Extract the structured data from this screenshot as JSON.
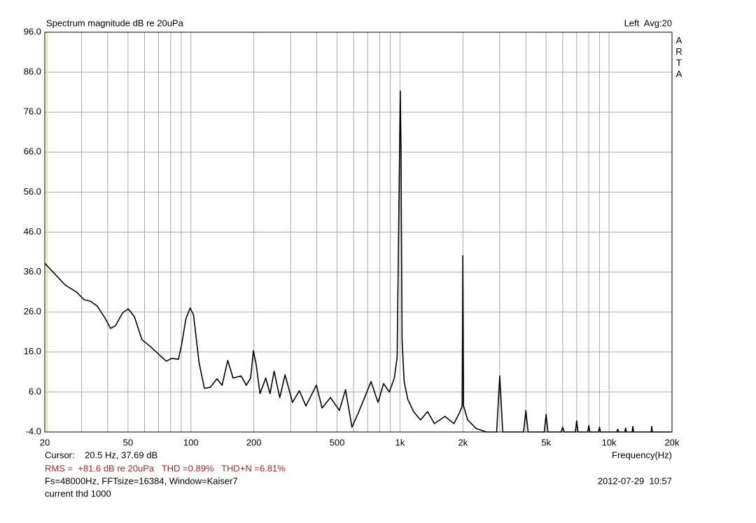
{
  "chart_data": {
    "type": "line",
    "title": "Spectrum magnitude dB re 20uPa",
    "channel_label": "Left  Avg:20",
    "brand": "ARTA",
    "xlabel": "Frequency(Hz)",
    "cursor_text": "Cursor:    20.5 Hz, 37.69 dB",
    "cursor_x": 20.5,
    "cursor_color": "#e8e070",
    "measurements": "RMS =  +81.6 dB re 20uPa   THD =0.89%   THD+N =6.81%",
    "settings": "Fs=48000Hz, FFTsize=16384, Window=Kaiser7",
    "timestamp": "2012-07-29  10:57",
    "note": "current thd 1000",
    "xscale": "log",
    "grid": true,
    "xlim": [
      20,
      20000
    ],
    "ylim": [
      -4,
      96
    ],
    "xticks": [
      20,
      50,
      100,
      200,
      500,
      {
        "value": 1000,
        "label": "1k"
      },
      {
        "value": 2000,
        "label": "2k"
      },
      {
        "value": 5000,
        "label": "5k"
      },
      {
        "value": 10000,
        "label": "10k"
      },
      {
        "value": 20000,
        "label": "20k"
      }
    ],
    "xminorticks": [
      30,
      40,
      60,
      70,
      80,
      90,
      300,
      400,
      600,
      700,
      800,
      900,
      3000,
      4000,
      6000,
      7000,
      8000,
      9000
    ],
    "yticks": [
      {
        "value": -4,
        "label": "-4.0"
      },
      {
        "value": 6,
        "label": "6.0"
      },
      {
        "value": 16,
        "label": "16.0"
      },
      {
        "value": 26,
        "label": "26.0"
      },
      {
        "value": 36,
        "label": "36.0"
      },
      {
        "value": 46,
        "label": "46.0"
      },
      {
        "value": 56,
        "label": "56.0"
      },
      {
        "value": 66,
        "label": "66.0"
      },
      {
        "value": 76,
        "label": "76.0"
      },
      {
        "value": 86,
        "label": "86.0"
      },
      {
        "value": 96,
        "label": "96.0"
      }
    ],
    "series": [
      {
        "color": "#000000",
        "x": [
          20,
          25,
          28.5,
          30.8,
          33.1,
          35.6,
          38.6,
          41.3,
          43.6,
          47.1,
          50.1,
          53.6,
          58.3,
          63.9,
          70.6,
          76.2,
          80.9,
          87.2,
          90.5,
          94.7,
          99.1,
          102.9,
          109.4,
          116,
          124,
          133,
          141,
          150,
          159,
          174,
          184,
          193,
          199,
          205,
          214,
          228,
          239,
          250,
          266,
          282,
          306,
          330,
          355,
          398,
          424,
          465,
          513,
          549,
          589,
          631,
          683,
          727,
          785,
          835,
          889,
          940,
          969,
          992,
          1003,
          1011,
          1023,
          1047,
          1089,
          1161,
          1254,
          1354,
          1461,
          1640,
          1811,
          1923,
          1983,
          1998,
          2014,
          2107,
          2310,
          2591,
          2900,
          3000,
          3100,
          3900,
          4000,
          4100,
          4900,
          5000,
          5100,
          5900,
          6000,
          6100,
          6900,
          7000,
          7100,
          7900,
          8000,
          8100,
          8900,
          9000,
          9100,
          10900,
          11000,
          11100,
          11900,
          12000,
          12100,
          12900,
          13000,
          13100,
          15900,
          16000,
          16100,
          20000
        ],
        "values": [
          38.2,
          32.8,
          30.9,
          29.1,
          28.7,
          27.5,
          24.7,
          21.9,
          22.6,
          25.8,
          26.8,
          24.9,
          19.1,
          17.4,
          15.3,
          13.7,
          14.4,
          14.2,
          18.2,
          24.4,
          27.0,
          25.3,
          13.3,
          6.9,
          7.2,
          9.3,
          7.7,
          13.9,
          9.5,
          10.0,
          7.7,
          9.5,
          16.3,
          13.0,
          5.6,
          9.5,
          5.6,
          11.2,
          4.6,
          10.3,
          3.4,
          6.3,
          2.5,
          7.7,
          2.0,
          4.6,
          1.4,
          6.6,
          -2.8,
          0.7,
          5.1,
          8.6,
          3.4,
          8.1,
          6.0,
          9.5,
          14.7,
          59.7,
          81.3,
          67.6,
          19.1,
          8.6,
          4.2,
          1.1,
          -1.0,
          1.1,
          -1.9,
          -0.1,
          -1.9,
          0.7,
          2.5,
          40.1,
          2.5,
          -1.0,
          -3.1,
          -4,
          -4,
          10.0,
          -4,
          -4,
          1.4,
          -4,
          -4,
          0.4,
          -4,
          -4,
          -2.8,
          -4,
          -4,
          -1.2,
          -4,
          -4,
          -2.4,
          -4,
          -4,
          -2.8,
          -4,
          -4,
          -3.3,
          -4,
          -4,
          -3.0,
          -4,
          -4,
          -2.6,
          -4,
          -4,
          -2.6,
          -4,
          -4
        ]
      }
    ]
  }
}
